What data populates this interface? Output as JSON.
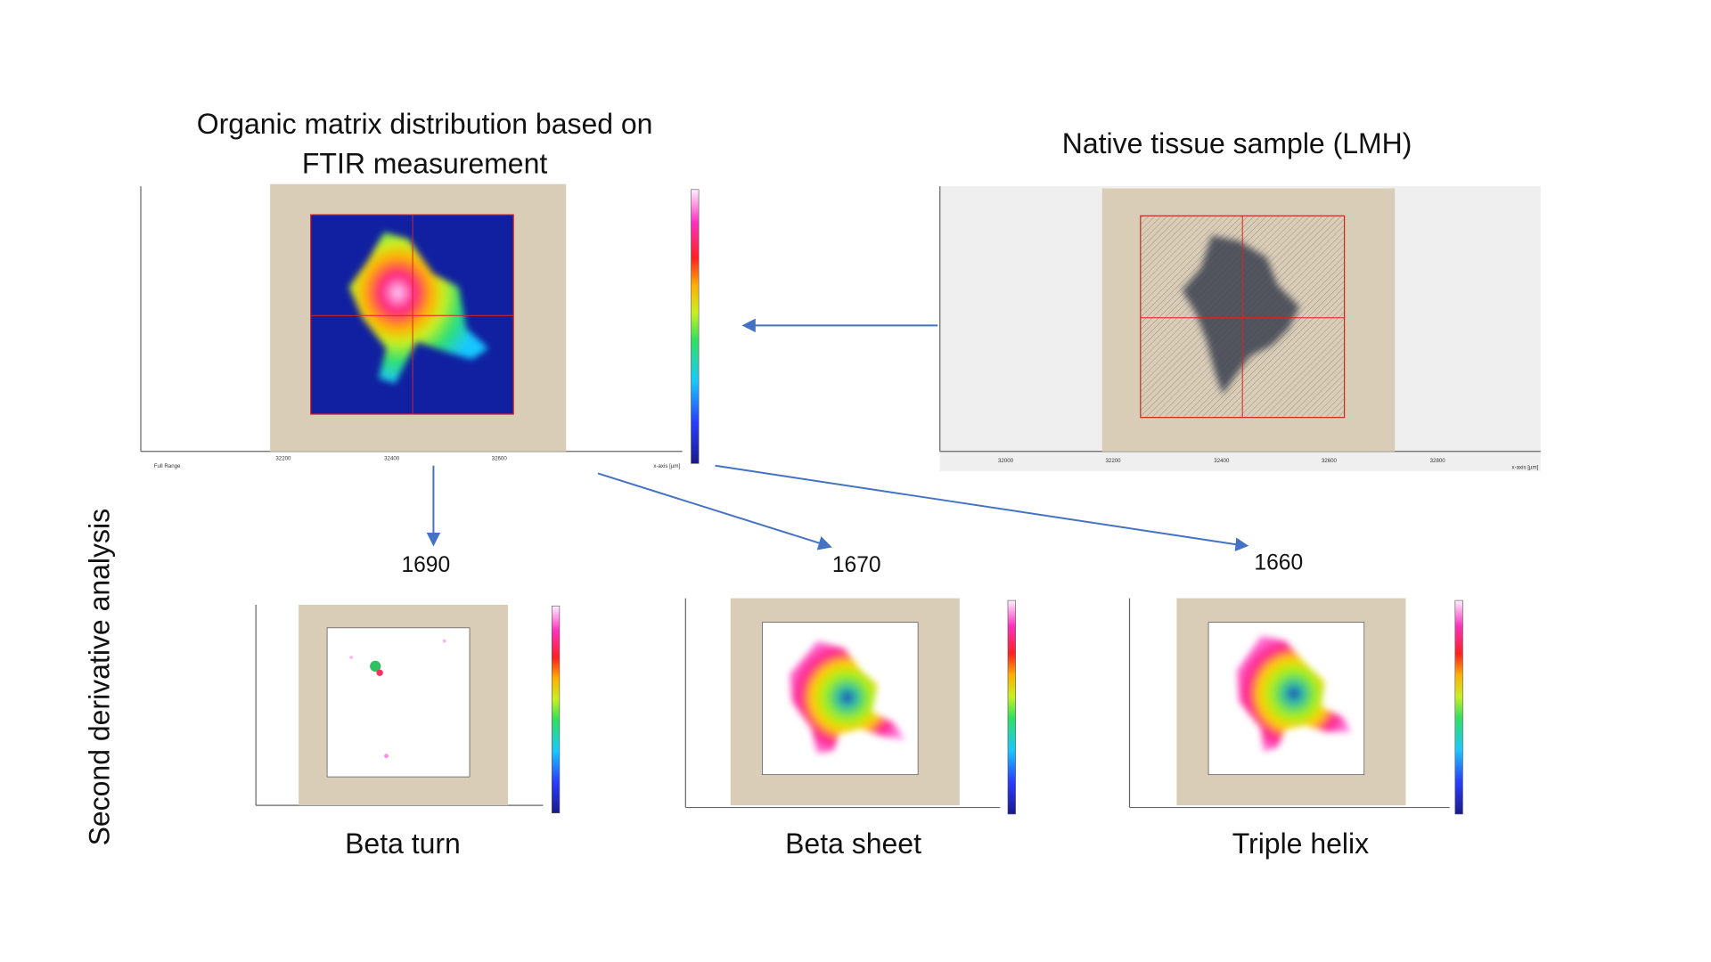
{
  "ftir_panel": {
    "title_lines": [
      "Organic matrix distribution based on",
      "FTIR measurement"
    ],
    "x_ticks": [
      "32200",
      "32400",
      "32600"
    ],
    "x_axis_label": "x-axis [µm]",
    "range_label": "Full Range"
  },
  "native_panel": {
    "title": "Native tissue sample (LMH)",
    "x_ticks": [
      "32000",
      "32200",
      "32400",
      "32600",
      "32800"
    ],
    "x_axis_label": "x-axis [µm]"
  },
  "side_label": "Second derivative analysis",
  "panels": [
    {
      "wavenumber": "1690",
      "label": "Beta turn"
    },
    {
      "wavenumber": "1670",
      "label": "Beta sheet"
    },
    {
      "wavenumber": "1660",
      "label": "Triple helix"
    }
  ]
}
